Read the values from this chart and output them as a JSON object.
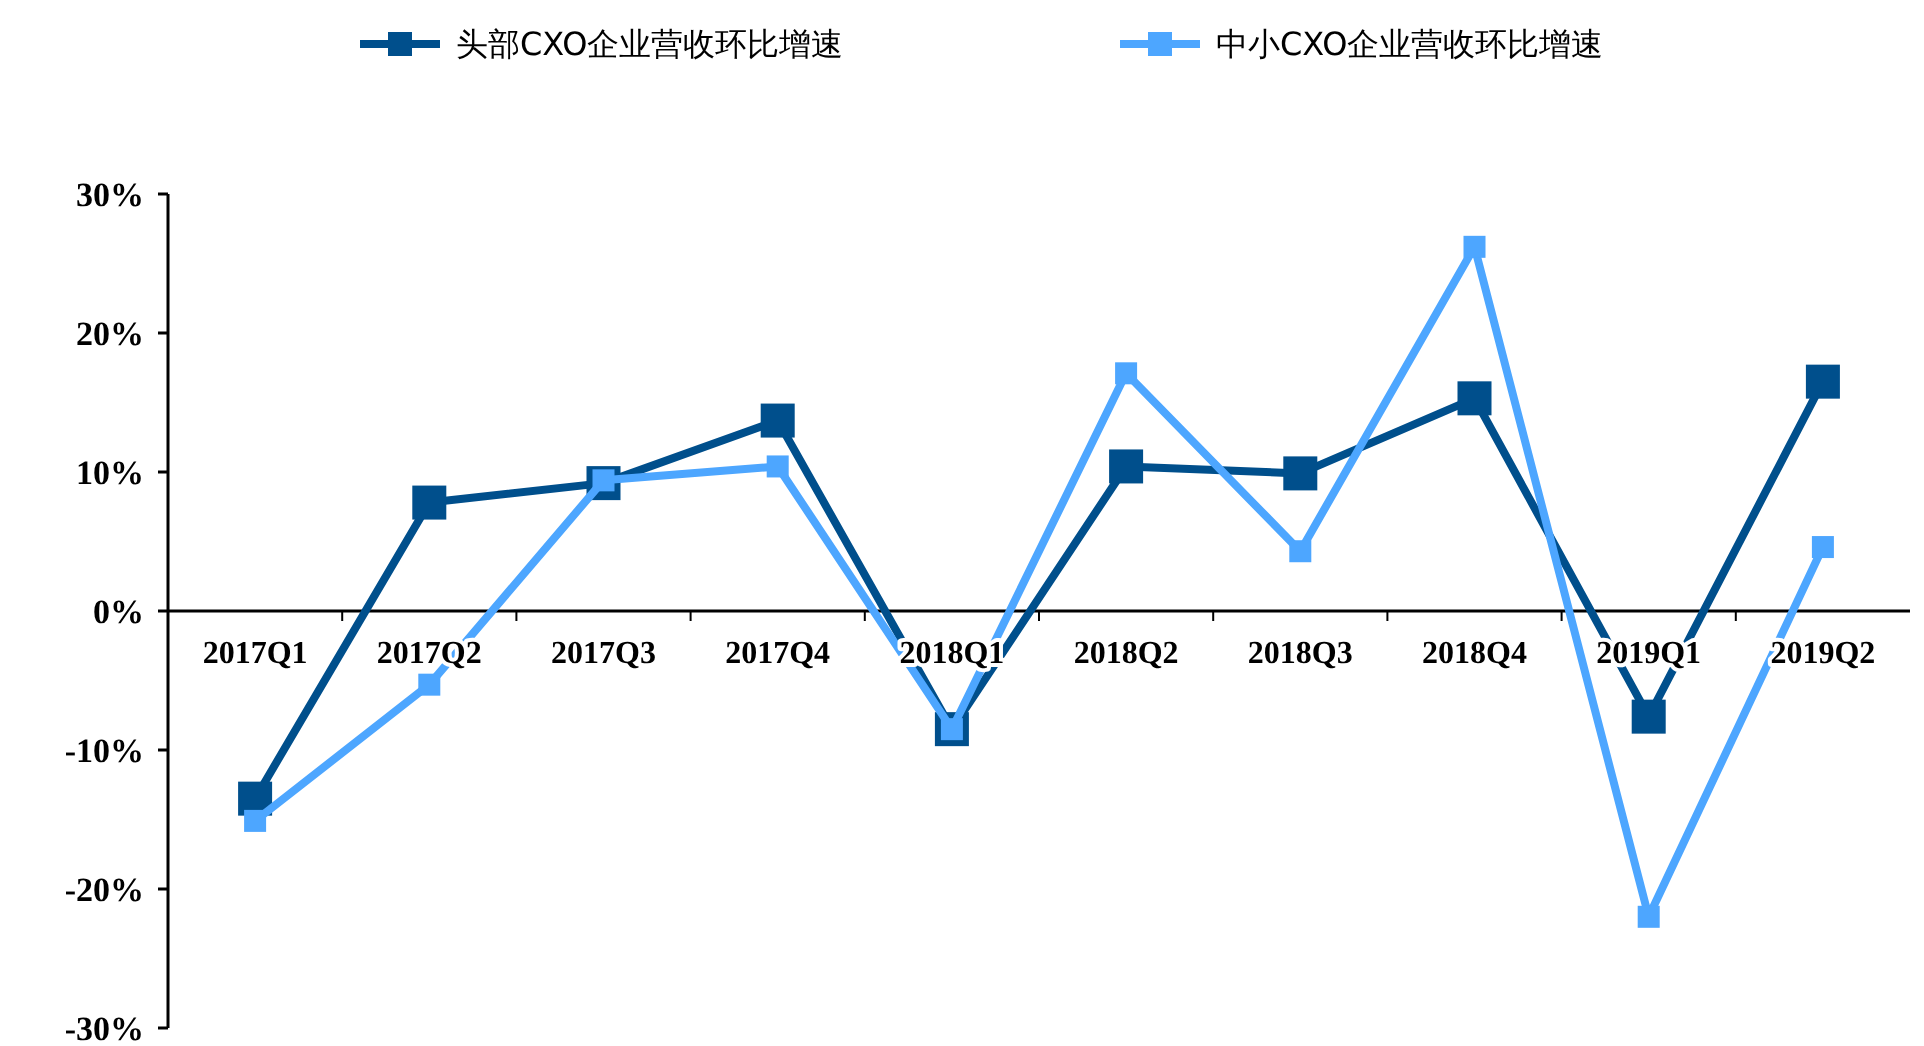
{
  "chart_data": {
    "type": "line",
    "categories": [
      "2017Q1",
      "2017Q2",
      "2017Q3",
      "2017Q4",
      "2018Q1",
      "2018Q2",
      "2018Q3",
      "2018Q4",
      "2019Q1",
      "2019Q2"
    ],
    "series": [
      {
        "name": "头部CXO企业营收环比增速",
        "color": "#004f8c",
        "values": [
          -13.5,
          7.8,
          9.2,
          13.7,
          -8.5,
          10.4,
          9.9,
          15.3,
          -7.6,
          16.5
        ]
      },
      {
        "name": "中小CXO企业营收环比增速",
        "color": "#4da6ff",
        "values": [
          -15.1,
          -5.3,
          9.4,
          10.4,
          -8.5,
          17.1,
          4.3,
          26.2,
          -22,
          4.6
        ]
      }
    ],
    "ylim": [
      -30,
      30
    ],
    "yticks": [
      {
        "value": -30,
        "label": "-30%"
      },
      {
        "value": -20,
        "label": "-20%"
      },
      {
        "value": -10,
        "label": "-10%"
      },
      {
        "value": 0,
        "label": "0%"
      },
      {
        "value": 10,
        "label": "10%"
      },
      {
        "value": 20,
        "label": "20%"
      },
      {
        "value": 30,
        "label": "30%"
      }
    ],
    "grid": false,
    "legend": "top",
    "marker": "square",
    "line_style": "solid"
  }
}
